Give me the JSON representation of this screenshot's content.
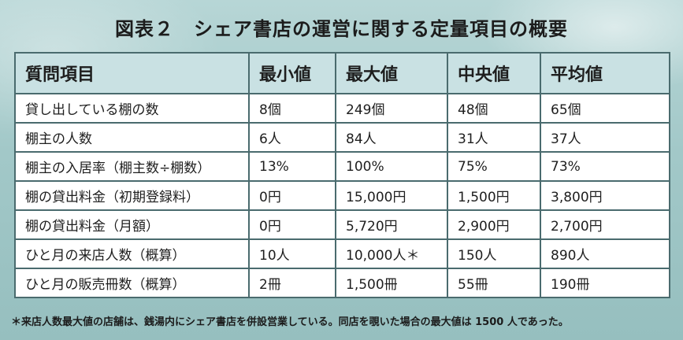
{
  "title": "図表２　シェア書店の運営に関する定量項目の概要",
  "headers": [
    "質問項目",
    "最小値",
    "最大値",
    "中央値",
    "平均値"
  ],
  "rows": [
    [
      "貸し出している棚の数",
      "8個",
      "249個",
      "48個",
      "65個"
    ],
    [
      "棚主の人数",
      "6人",
      "84人",
      "31人",
      "37人"
    ],
    [
      "棚主の入居率（棚主数÷棚数）",
      "13%",
      "100%",
      "75%",
      "73%"
    ],
    [
      "棚の貸出料金（初期登録料）",
      "0円",
      "15,000円",
      "1,500円",
      "3,800円"
    ],
    [
      "棚の貸出料金（月額）",
      "0円",
      "5,720円",
      "2,900円",
      "2,700円"
    ],
    [
      "ひと月の来店人数（概算）",
      "10人",
      "10,000人＊",
      "150人",
      "890人"
    ],
    [
      "ひと月の販売冊数（概算）",
      "2冊",
      "1,500冊",
      "55冊",
      "190冊"
    ]
  ],
  "footnote": "＊来店人数最大値の店舗は、銭湯内にシェア書店を併設営業している。同店を覗いた場合の最大値は 1500 人であった。"
}
